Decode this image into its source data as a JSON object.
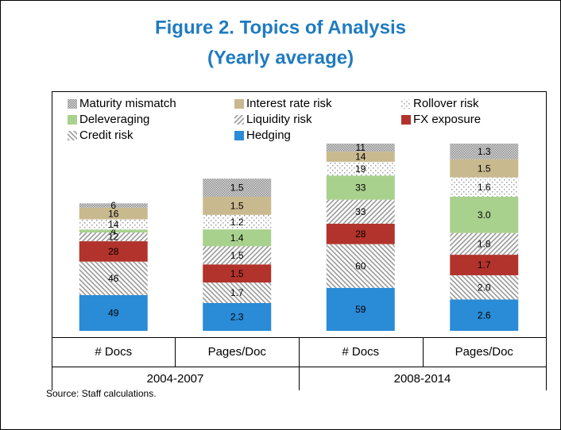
{
  "chart_data": {
    "type": "stacked-bar",
    "title": "Figure 2. Topics of Analysis",
    "subtitle": "(Yearly average)",
    "source": "Source: Staff calculations.",
    "categories": [
      "# Docs",
      "Pages/Doc",
      "# Docs",
      "Pages/Doc"
    ],
    "groups": [
      "2004-2007",
      "2008-2014"
    ],
    "series": [
      {
        "name": "Hedging",
        "color": "#2a8bd6",
        "pattern": "solid",
        "values": [
          49,
          2.3,
          59,
          2.6
        ]
      },
      {
        "name": "Credit risk",
        "color": "#9a9a9a",
        "pattern": "hatch-back",
        "values": [
          46,
          1.7,
          60,
          2
        ],
        "value_labels": [
          "46",
          "1.7",
          "60",
          "2.0"
        ]
      },
      {
        "name": "FX exposure",
        "color": "#b2332b",
        "pattern": "solid",
        "values": [
          28,
          1.5,
          28,
          1.7
        ]
      },
      {
        "name": "Liquidity risk",
        "color": "#9a9a9a",
        "pattern": "hatch",
        "values": [
          12,
          1.5,
          33,
          1.8
        ]
      },
      {
        "name": "Deleveraging",
        "color": "#a9d18e",
        "pattern": "solid",
        "values": [
          4,
          1.4,
          33,
          3
        ],
        "value_labels": [
          "4",
          "1.4",
          "33",
          "3.0"
        ]
      },
      {
        "name": "Rollover risk",
        "color": "#9a9a9a",
        "pattern": "dots",
        "values": [
          14,
          1.2,
          19,
          1.6
        ]
      },
      {
        "name": "Interest rate risk",
        "color": "#c9b98e",
        "pattern": "solid",
        "values": [
          16,
          1.5,
          14,
          1.5
        ]
      },
      {
        "name": "Maturity mismatch",
        "color": "#8c8c8c",
        "pattern": "dots-dense",
        "values": [
          6,
          1.5,
          11,
          1.3
        ]
      }
    ]
  }
}
